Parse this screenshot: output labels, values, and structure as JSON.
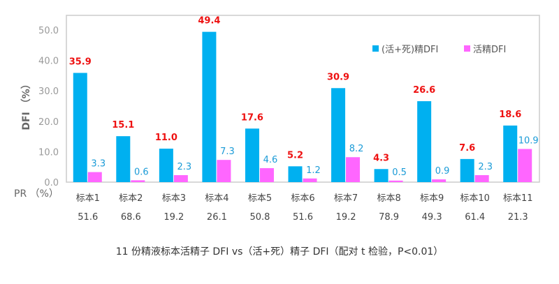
{
  "chart_data": {
    "type": "bar",
    "title": "11 份精液标本活精子 DFI   vs（活+死）精子 DFI（配对 t 检验，P<0.01）",
    "ylabel": "DFI （%）",
    "ylim": [
      0,
      50
    ],
    "yticks": [
      "0.0",
      "10.0",
      "20.0",
      "30.0",
      "40.0",
      "50.0"
    ],
    "categories": [
      "标本1",
      "标本2",
      "标本3",
      "标本4",
      "标本5",
      "标本6",
      "标本7",
      "标本8",
      "标本9",
      "标本10",
      "标本11"
    ],
    "series": [
      {
        "name": "(活+死)精DFI",
        "color": "#00b0f0",
        "label_color": "#ee1111",
        "values": [
          35.9,
          15.1,
          11.0,
          49.4,
          17.6,
          5.2,
          30.9,
          4.3,
          26.6,
          7.6,
          18.6
        ]
      },
      {
        "name": "活精DFI",
        "color": "#ff66ff",
        "label_color": "#1a9bd7",
        "values": [
          3.3,
          0.6,
          2.3,
          7.3,
          4.6,
          1.2,
          8.2,
          0.5,
          0.9,
          2.3,
          10.9
        ]
      }
    ],
    "pr_label": "PR （%）",
    "pr_values": [
      "51.6",
      "68.6",
      "19.2",
      "26.1",
      "50.8",
      "51.6",
      "19.2",
      "78.9",
      "49.3",
      "61.4",
      "21.3"
    ],
    "legend_position": "top-right",
    "grid": false
  }
}
